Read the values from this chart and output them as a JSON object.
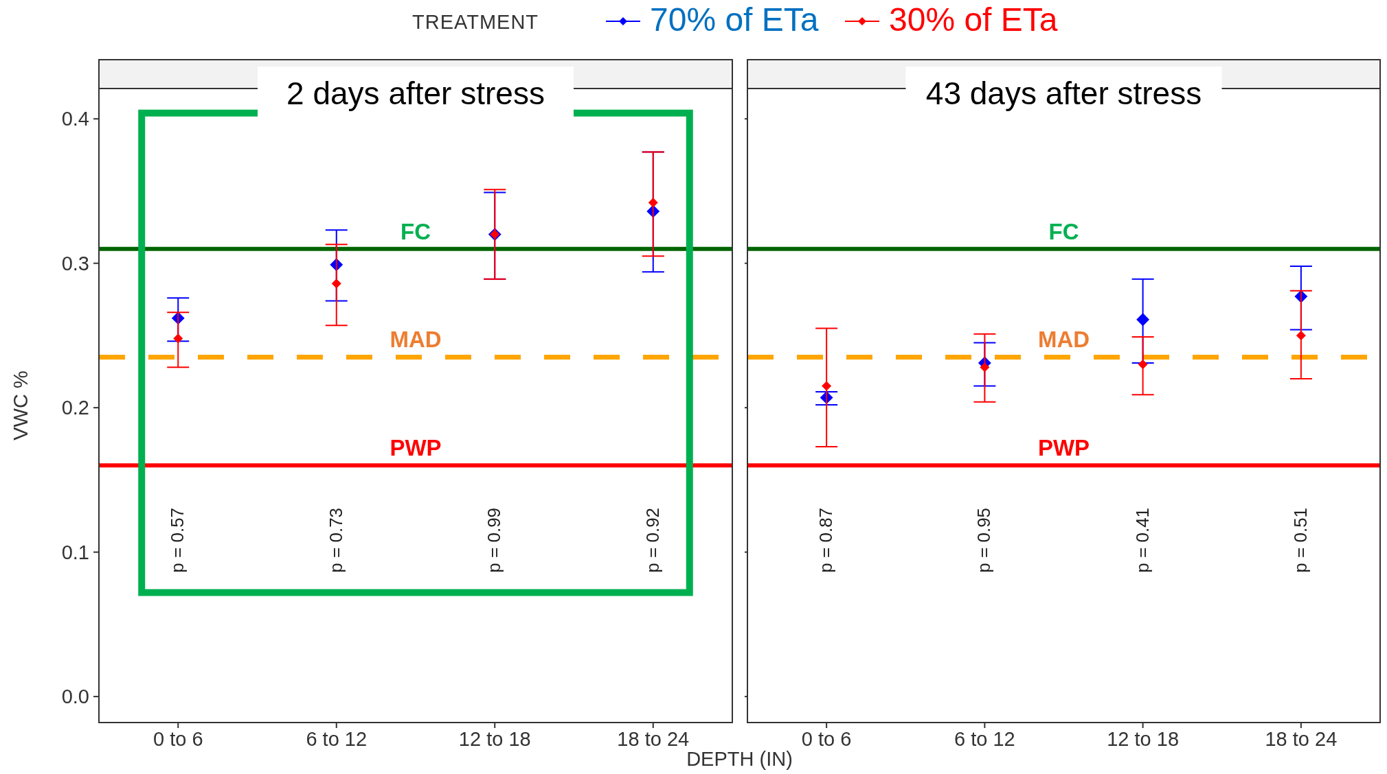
{
  "chart_data": [
    {
      "type": "scatter",
      "title": "2 days after stress",
      "xlabel": "DEPTH (IN)",
      "ylabel": "VWC %",
      "legend_title": "TREATMENT",
      "legend": "top",
      "marker": "diamond",
      "grid": false,
      "categories": [
        "0 to 6",
        "6 to 12",
        "12 to 18",
        "18 to 24"
      ],
      "ylim": [
        -0.018,
        0.421
      ],
      "yticks": [
        {
          "value": 0,
          "label": "0.0"
        },
        0.1,
        0.2,
        0.3,
        0.4
      ],
      "series": [
        {
          "name": "70% of ETa",
          "color": "#0000ff",
          "values": [
            0.262,
            0.299,
            0.32,
            0.336
          ],
          "errors": [
            [
              0.246,
              0.276
            ],
            [
              0.274,
              0.323
            ],
            [
              0.289,
              0.349
            ],
            [
              0.294,
              0.377
            ]
          ]
        },
        {
          "name": "30% of ETa",
          "color": "#ff0000",
          "values": [
            0.248,
            0.286,
            0.32,
            0.342
          ],
          "errors": [
            [
              0.228,
              0.266
            ],
            [
              0.257,
              0.313
            ],
            [
              0.289,
              0.351
            ],
            [
              0.305,
              0.377
            ]
          ]
        }
      ],
      "ref_lines": [
        {
          "axis": "y",
          "value": 0.31,
          "label": "FC",
          "color": "#006400",
          "line_style": "solid"
        },
        {
          "axis": "y",
          "value": 0.235,
          "label": "MAD",
          "color": "#ffa500",
          "line_style": "dashed"
        },
        {
          "axis": "y",
          "value": 0.16,
          "label": "PWP",
          "color": "#ff0000",
          "line_style": "solid"
        }
      ],
      "annotations": [
        "p = 0.57",
        "p = 0.73",
        "p = 0.99",
        "p = 0.92"
      ]
    },
    {
      "type": "scatter",
      "title": "43 days after stress",
      "marker": "diamond",
      "grid": false,
      "tick_labels": "x",
      "categories": [
        "0 to 6",
        "6 to 12",
        "12 to 18",
        "18 to 24"
      ],
      "ylim": [
        -0.018,
        0.421
      ],
      "yticks": [
        {
          "value": 0,
          "label": null
        },
        {
          "value": 0.1,
          "label": null
        },
        {
          "value": 0.2,
          "label": null
        },
        {
          "value": 0.3,
          "label": null
        },
        {
          "value": 0.4,
          "label": null
        }
      ],
      "series": [
        {
          "color": "#0000ff",
          "values": [
            0.207,
            0.231,
            0.261,
            0.277
          ],
          "errors": [
            [
              0.202,
              0.211
            ],
            [
              0.215,
              0.245
            ],
            [
              0.231,
              0.289
            ],
            [
              0.254,
              0.298
            ]
          ]
        },
        {
          "color": "#ff0000",
          "values": [
            0.215,
            0.228,
            0.23,
            0.25
          ],
          "errors": [
            [
              0.173,
              0.255
            ],
            [
              0.204,
              0.251
            ],
            [
              0.209,
              0.249
            ],
            [
              0.22,
              0.281
            ]
          ]
        }
      ],
      "ref_lines": [
        {
          "axis": "y",
          "value": 0.31,
          "label": "FC",
          "color": "#006400",
          "line_style": "solid"
        },
        {
          "axis": "y",
          "value": 0.235,
          "label": "MAD",
          "color": "#ffa500",
          "line_style": "dashed"
        },
        {
          "axis": "y",
          "value": 0.16,
          "label": "PWP",
          "color": "#ff0000",
          "line_style": "solid"
        }
      ],
      "annotations": [
        "p = 0.87",
        "p = 0.95",
        "p = 0.41",
        "p = 0.51"
      ]
    }
  ]
}
